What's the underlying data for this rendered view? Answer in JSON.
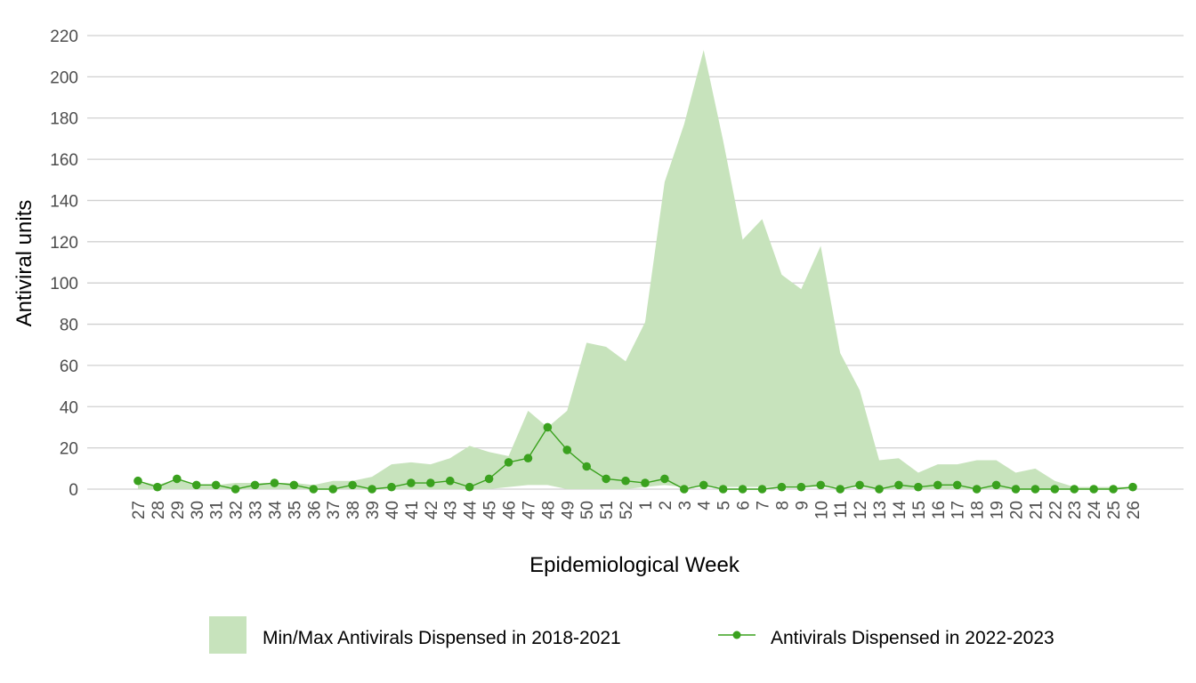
{
  "chart_data": {
    "type": "line",
    "xlabel": "Epidemiological Week",
    "ylabel": "Antiviral units",
    "ylim": [
      0,
      220
    ],
    "yticks": [
      0,
      20,
      40,
      60,
      80,
      100,
      120,
      140,
      160,
      180,
      200,
      220
    ],
    "grid": "horizontal",
    "legend_position": "bottom",
    "categories": [
      "27",
      "28",
      "29",
      "30",
      "31",
      "32",
      "33",
      "34",
      "35",
      "36",
      "37",
      "38",
      "39",
      "40",
      "41",
      "42",
      "43",
      "44",
      "45",
      "46",
      "47",
      "48",
      "49",
      "50",
      "51",
      "52",
      "1",
      "2",
      "3",
      "4",
      "5",
      "6",
      "7",
      "8",
      "9",
      "10",
      "11",
      "12",
      "13",
      "14",
      "15",
      "16",
      "17",
      "18",
      "19",
      "20",
      "21",
      "22",
      "23",
      "24",
      "25",
      "26"
    ],
    "band": {
      "name": "Min/Max Antivirals Dispensed in 2018-2021",
      "color": "#c7e3bc",
      "min": [
        0,
        0,
        0,
        0,
        0,
        0,
        0,
        0,
        0,
        0,
        0,
        0,
        0,
        0,
        0,
        0,
        0,
        0,
        0,
        1,
        2,
        2,
        0,
        0,
        0,
        0,
        1,
        2,
        1,
        1,
        1,
        1,
        1,
        1,
        1,
        1,
        1,
        1,
        0,
        0,
        0,
        0,
        0,
        0,
        0,
        0,
        0,
        0,
        0,
        0,
        0,
        0
      ],
      "max": [
        4,
        2,
        5,
        2,
        2,
        3,
        3,
        3,
        3,
        2,
        4,
        4,
        6,
        12,
        13,
        12,
        15,
        21,
        18,
        16,
        38,
        30,
        38,
        71,
        69,
        62,
        81,
        149,
        177,
        213,
        169,
        121,
        131,
        104,
        97,
        118,
        66,
        48,
        14,
        15,
        8,
        12,
        12,
        14,
        14,
        8,
        10,
        4,
        1,
        1,
        1,
        1
      ]
    },
    "series": [
      {
        "name": "Antivirals Dispensed in 2022-2023",
        "color": "#3aa11e",
        "values": [
          4,
          1,
          5,
          2,
          2,
          0,
          2,
          3,
          2,
          0,
          0,
          2,
          0,
          1,
          3,
          3,
          4,
          1,
          5,
          13,
          15,
          30,
          19,
          11,
          5,
          4,
          3,
          5,
          0,
          2,
          0,
          0,
          0,
          1,
          1,
          2,
          0,
          2,
          0,
          2,
          1,
          2,
          2,
          0,
          2,
          0,
          0,
          0,
          0,
          0,
          0,
          1
        ]
      }
    ]
  }
}
